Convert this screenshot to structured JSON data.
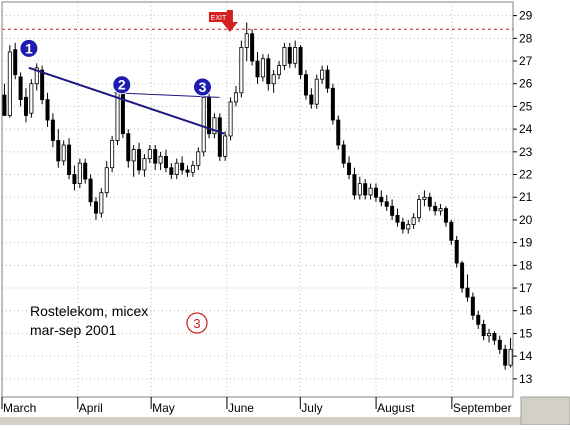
{
  "chart_data": {
    "type": "candlestick",
    "title": "",
    "annotation_lines": [
      "Rostelekom, micex",
      "mar-sep 2001"
    ],
    "figure_label": "3",
    "exit_label": "EXIT",
    "markers": [
      {
        "label": "1",
        "date": "2001-03-12",
        "price": 27.6
      },
      {
        "label": "2",
        "date": "2001-04-19",
        "price": 26.0
      },
      {
        "label": "3",
        "date": "2001-05-22",
        "price": 25.9
      }
    ],
    "trendline": {
      "from": {
        "date": "2001-03-12",
        "value": 26.7
      },
      "to": {
        "date": "2001-05-31",
        "value": 23.8
      }
    },
    "neckline": {
      "from": {
        "date": "2001-04-16",
        "value": 25.6
      },
      "to": {
        "date": "2001-05-29",
        "value": 25.4
      }
    },
    "resistance_level": 28.4,
    "y_ticks": [
      13,
      14,
      15,
      16,
      17,
      18,
      19,
      20,
      21,
      22,
      23,
      24,
      25,
      26,
      27,
      28,
      29
    ],
    "ylim": [
      12.2,
      29.6
    ],
    "x_labels": [
      {
        "label": "March",
        "date": "2001-03-01"
      },
      {
        "label": "April",
        "date": "2001-04-01"
      },
      {
        "label": "May",
        "date": "2001-05-01"
      },
      {
        "label": "June",
        "date": "2001-06-01"
      },
      {
        "label": "July",
        "date": "2001-07-01"
      },
      {
        "label": "August",
        "date": "2001-08-01"
      },
      {
        "label": "September",
        "date": "2001-09-01"
      }
    ],
    "xlim": [
      "2001-03-01",
      "2001-09-26"
    ],
    "grid": "vertical dotted at month starts, horizontal dotted at price levels",
    "series": [
      {
        "values": [
          [
            25.5,
            26.0,
            24.7,
            24.6
          ],
          [
            24.6,
            27.7,
            24.5,
            27.4
          ],
          [
            27.5,
            27.8,
            26.2,
            26.4
          ],
          [
            26.3,
            26.5,
            25.0,
            25.3
          ],
          [
            25.4,
            25.8,
            24.3,
            24.6
          ],
          [
            24.7,
            26.2,
            24.5,
            26.0
          ],
          [
            26.0,
            26.9,
            25.7,
            26.7
          ],
          [
            26.6,
            26.8,
            25.1,
            25.3
          ],
          [
            25.3,
            25.6,
            24.1,
            24.4
          ],
          [
            24.4,
            24.7,
            23.2,
            23.5
          ],
          [
            23.5,
            24.0,
            22.3,
            22.6
          ],
          [
            22.6,
            23.5,
            22.4,
            23.3
          ],
          [
            23.3,
            23.6,
            21.8,
            22.0
          ],
          [
            22.0,
            22.4,
            21.3,
            21.6
          ],
          [
            21.6,
            22.7,
            21.4,
            22.5
          ],
          [
            22.5,
            22.7,
            21.6,
            21.8
          ],
          [
            21.8,
            22.0,
            20.6,
            20.8
          ],
          [
            20.8,
            21.0,
            20.0,
            20.3
          ],
          [
            20.3,
            21.4,
            20.1,
            21.2
          ],
          [
            21.2,
            22.6,
            21.0,
            22.3
          ],
          [
            22.3,
            23.7,
            22.1,
            23.5
          ],
          [
            23.5,
            25.9,
            23.3,
            25.6
          ],
          [
            25.6,
            25.8,
            23.6,
            23.8
          ],
          [
            23.8,
            24.0,
            22.3,
            22.6
          ],
          [
            22.6,
            23.3,
            21.9,
            23.1
          ],
          [
            23.1,
            23.4,
            22.0,
            22.2
          ],
          [
            22.2,
            22.9,
            21.9,
            22.7
          ],
          [
            22.7,
            23.3,
            22.5,
            23.1
          ],
          [
            23.1,
            23.3,
            22.2,
            22.5
          ],
          [
            22.5,
            23.0,
            22.2,
            22.8
          ],
          [
            22.8,
            23.1,
            22.1,
            22.3
          ],
          [
            22.3,
            22.5,
            21.8,
            22.0
          ],
          [
            22.0,
            22.7,
            21.8,
            22.5
          ],
          [
            22.5,
            22.8,
            22.0,
            22.2
          ],
          [
            22.2,
            22.4,
            21.9,
            22.1
          ],
          [
            22.1,
            22.6,
            21.9,
            22.4
          ],
          [
            22.4,
            23.2,
            22.2,
            23.0
          ],
          [
            23.0,
            25.7,
            22.8,
            25.4
          ],
          [
            25.4,
            25.6,
            23.6,
            23.8
          ],
          [
            23.8,
            24.7,
            23.6,
            24.5
          ],
          [
            24.5,
            24.7,
            22.6,
            22.8
          ],
          [
            22.8,
            23.9,
            22.6,
            23.7
          ],
          [
            23.7,
            25.4,
            23.5,
            25.2
          ],
          [
            25.2,
            25.9,
            25.0,
            25.6
          ],
          [
            25.6,
            27.9,
            25.4,
            27.6
          ],
          [
            27.6,
            28.7,
            27.0,
            28.2
          ],
          [
            28.2,
            28.4,
            26.8,
            27.0
          ],
          [
            27.0,
            27.4,
            26.0,
            26.3
          ],
          [
            26.3,
            27.3,
            26.1,
            27.1
          ],
          [
            27.1,
            27.3,
            25.7,
            26.0
          ],
          [
            26.0,
            26.6,
            25.6,
            26.4
          ],
          [
            26.4,
            27.0,
            26.2,
            26.8
          ],
          [
            26.8,
            27.8,
            26.6,
            27.6
          ],
          [
            27.6,
            27.8,
            26.7,
            26.9
          ],
          [
            26.9,
            27.9,
            26.7,
            27.6
          ],
          [
            27.6,
            27.7,
            26.2,
            26.4
          ],
          [
            26.4,
            26.6,
            25.3,
            25.5
          ],
          [
            25.5,
            25.8,
            24.9,
            25.1
          ],
          [
            25.1,
            26.4,
            24.9,
            26.2
          ],
          [
            26.2,
            26.8,
            26.0,
            26.6
          ],
          [
            26.6,
            26.8,
            25.6,
            25.8
          ],
          [
            25.8,
            26.0,
            24.2,
            24.4
          ],
          [
            24.4,
            24.6,
            23.1,
            23.3
          ],
          [
            23.3,
            23.5,
            22.3,
            22.5
          ],
          [
            22.5,
            22.8,
            21.8,
            22.0
          ],
          [
            22.0,
            22.3,
            20.9,
            21.1
          ],
          [
            21.1,
            21.9,
            20.9,
            21.6
          ],
          [
            21.6,
            21.8,
            20.9,
            21.1
          ],
          [
            21.1,
            21.6,
            20.9,
            21.4
          ],
          [
            21.4,
            21.6,
            20.8,
            21.0
          ],
          [
            21.0,
            21.3,
            20.6,
            20.8
          ],
          [
            20.8,
            21.1,
            20.4,
            20.6
          ],
          [
            20.6,
            20.9,
            20.0,
            20.2
          ],
          [
            20.2,
            20.5,
            19.7,
            19.9
          ],
          [
            19.9,
            20.1,
            19.4,
            19.6
          ],
          [
            19.6,
            20.0,
            19.4,
            19.8
          ],
          [
            19.8,
            20.3,
            19.6,
            20.1
          ],
          [
            20.1,
            21.1,
            19.9,
            20.9
          ],
          [
            20.9,
            21.3,
            20.6,
            21.0
          ],
          [
            21.0,
            21.2,
            20.4,
            20.6
          ],
          [
            20.6,
            20.8,
            20.2,
            20.4
          ],
          [
            20.4,
            20.7,
            20.2,
            20.5
          ],
          [
            20.5,
            20.6,
            19.7,
            19.9
          ],
          [
            19.9,
            20.0,
            18.9,
            19.1
          ],
          [
            19.1,
            19.3,
            17.9,
            18.1
          ],
          [
            18.1,
            18.2,
            16.8,
            17.0
          ],
          [
            17.0,
            17.6,
            16.4,
            16.6
          ],
          [
            16.6,
            16.8,
            15.6,
            15.8
          ],
          [
            15.8,
            16.0,
            15.2,
            15.4
          ],
          [
            15.4,
            15.6,
            14.7,
            14.9
          ],
          [
            14.9,
            15.2,
            14.6,
            15.0
          ],
          [
            15.0,
            15.1,
            14.5,
            14.7
          ],
          [
            14.7,
            14.9,
            14.1,
            14.3
          ],
          [
            14.3,
            14.5,
            13.4,
            13.6
          ],
          [
            13.6,
            14.8,
            13.5,
            14.3
          ]
        ]
      }
    ]
  }
}
